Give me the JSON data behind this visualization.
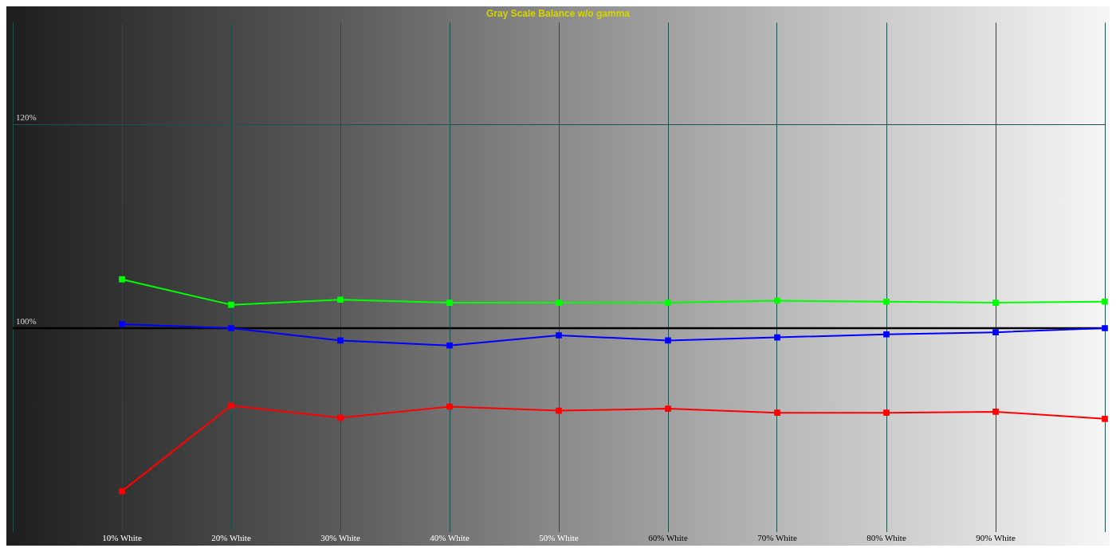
{
  "chart_data": {
    "type": "line",
    "title": "Gray Scale Balance w/o gamma",
    "categories": [
      null,
      "10% White",
      "20% White",
      "30% White",
      "40% White",
      "50% White",
      "60% White",
      "70% White",
      "80% White",
      "90% White",
      null
    ],
    "series": [
      {
        "color": "#00ff00",
        "values": [
          null,
          104.8,
          102.3,
          102.8,
          102.5,
          102.5,
          102.5,
          102.7,
          102.6,
          102.5,
          102.6
        ]
      },
      {
        "color": "#0000ff",
        "values": [
          null,
          100.4,
          100,
          98.8,
          98.3,
          99.3,
          98.8,
          99.1,
          99.4,
          99.6,
          100
        ]
      },
      {
        "color": "#ff0000",
        "values": [
          null,
          84.0,
          92.4,
          91.2,
          92.3,
          91.9,
          92.1,
          91.7,
          91.7,
          91.8,
          91.1
        ]
      }
    ],
    "ylim": [
      80,
      130
    ],
    "yticks": [
      {
        "value": 100,
        "label": "100%"
      },
      {
        "value": 120,
        "label": "120%"
      }
    ],
    "ref_lines": [
      {
        "axis": "y",
        "value": 100,
        "color": "#000000"
      }
    ],
    "grid": true,
    "marker": "square",
    "line_style": "solid",
    "legend": false
  }
}
